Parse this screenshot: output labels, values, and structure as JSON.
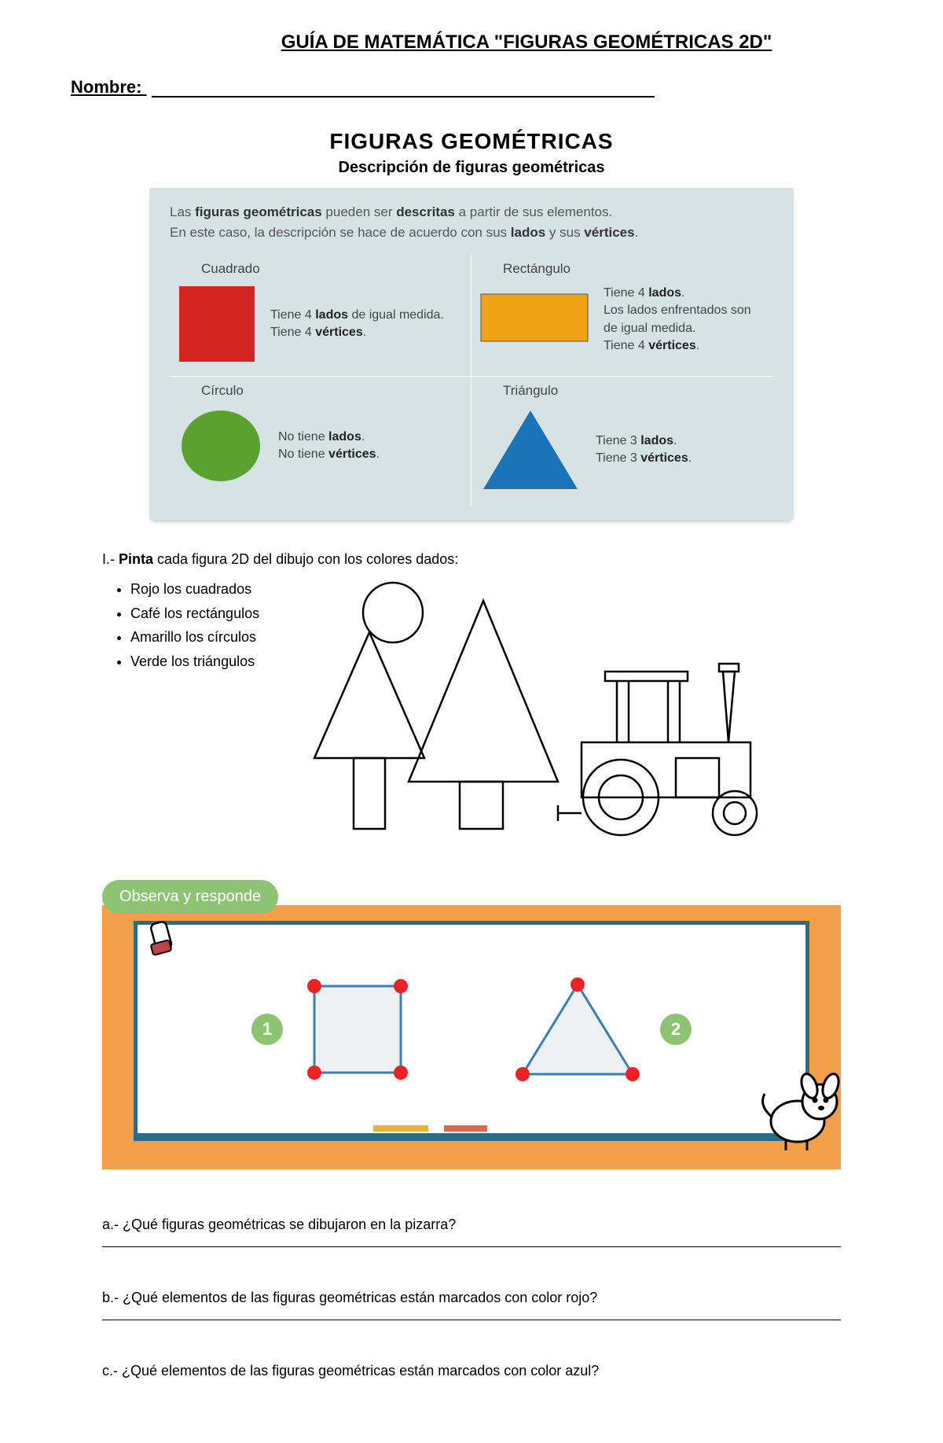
{
  "header": {
    "title": "GUÍA   DE MATEMÁTICA \"FIGURAS GEOMÉTRICAS 2D\"",
    "name_label": "Nombre:"
  },
  "figbox": {
    "title": "FIGURAS GEOMÉTRICAS",
    "subtitle": "Descripción de figuras geométricas",
    "intro_html": "Las <b>figuras geométricas</b> pueden ser <b>descritas</b> a partir de sus elementos.<br>En este caso, la descripción se hace de acuerdo con sus <b>lados</b> y sus <b>vértices</b>.",
    "panel_bg": "#d5e3e6",
    "divider": "#ffffff",
    "cells": {
      "cuadrado": {
        "name": "Cuadrado",
        "desc_html": "Tiene 4 <b>lados</b> de igual medida.<br>Tiene 4 <b>vértices</b>.",
        "color": "#d32422"
      },
      "rectangulo": {
        "name": "Rectángulo",
        "desc_html": "Tiene 4 <b>lados</b>.<br>Los lados enfrentados son de igual medida.<br>Tiene 4 <b>vértices</b>.",
        "color": "#f0a315"
      },
      "circulo": {
        "name": "Círculo",
        "desc_html": "No tiene <b>lados</b>.<br>No tiene <b>vértices</b>.",
        "color": "#5aa12e"
      },
      "triangulo": {
        "name": "Triángulo",
        "desc_html": "Tiene 3 <b>lados</b>.<br>Tiene 3 <b>vértices</b>.",
        "color": "#1b74b8"
      }
    }
  },
  "ex1": {
    "label_html": "I.- <b>Pinta</b> cada figura 2D del dibujo con los colores dados:",
    "items": [
      "Rojo los cuadrados",
      "Café los rectángulos",
      "Amarillo los círculos",
      "Verde los triángulos"
    ],
    "scene": {
      "stroke": "#000000",
      "fill": "#ffffff"
    }
  },
  "observe": {
    "tag": "Observa y responde",
    "tag_bg": "#8cc474",
    "board_bg": "#f4a04a",
    "frame_color": "#2b6d86",
    "badge_bg": "#8cc474",
    "vertex_color": "#e22",
    "edge_color": "#3a7db8",
    "badges": [
      "1",
      "2"
    ]
  },
  "questions": {
    "a": "a.- ¿Qué figuras geométricas se dibujaron en la pizarra?",
    "b": "b.- ¿Qué elementos de las figuras geométricas están marcados con color rojo?",
    "c": "c.- ¿Qué elementos de las figuras geométricas están marcados con color azul?"
  }
}
